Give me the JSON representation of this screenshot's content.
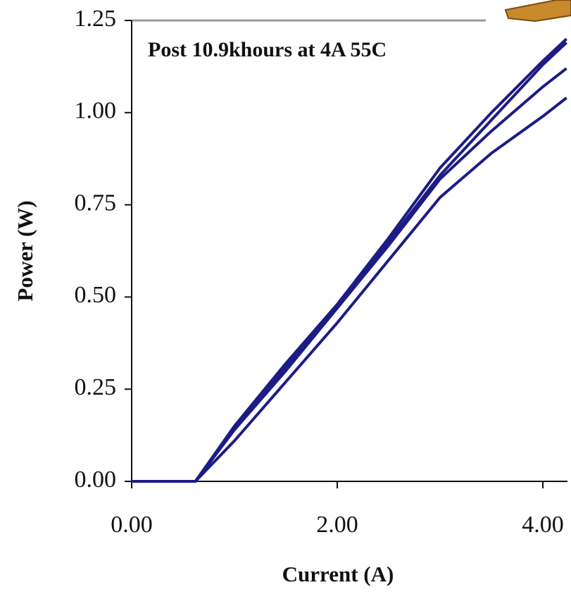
{
  "chart_data": {
    "type": "line",
    "annotation": "Post 10.9khours at 4A 55C",
    "x_label": "Current (A)",
    "y_label": "Power (W)",
    "x": [
      0,
      0.55,
      0.62,
      1.0,
      1.5,
      2.0,
      2.5,
      3.0,
      3.5,
      4.0,
      4.23
    ],
    "series": [
      {
        "color": "#1c1c86",
        "values": [
          0,
          0,
          0,
          0.15,
          0.32,
          0.48,
          0.66,
          0.85,
          1.0,
          1.14,
          1.2
        ]
      },
      {
        "color": "#1c1c86",
        "values": [
          0,
          0,
          0,
          0.14,
          0.31,
          0.47,
          0.65,
          0.83,
          0.98,
          1.13,
          1.19
        ]
      },
      {
        "color": "#1c1c86",
        "values": [
          0,
          0,
          0,
          0.14,
          0.3,
          0.47,
          0.64,
          0.82,
          0.95,
          1.07,
          1.12
        ]
      },
      {
        "color": "#1c1c86",
        "values": [
          0,
          0,
          0,
          0.11,
          0.27,
          0.43,
          0.6,
          0.77,
          0.89,
          0.99,
          1.04
        ]
      }
    ],
    "xlim": [
      0,
      4.24
    ],
    "ylim": [
      0,
      1.25
    ],
    "xticks": [
      {
        "value": 0,
        "label": "0.00"
      },
      {
        "value": 2,
        "label": "2.00"
      },
      {
        "value": 4,
        "label": "4.00"
      }
    ],
    "yticks": [
      {
        "value": 0,
        "label": "0.00"
      },
      0.25,
      {
        "value": 0.5,
        "label": "0.50"
      },
      0.75,
      {
        "value": 1,
        "label": "1.00"
      },
      1.25
    ]
  }
}
